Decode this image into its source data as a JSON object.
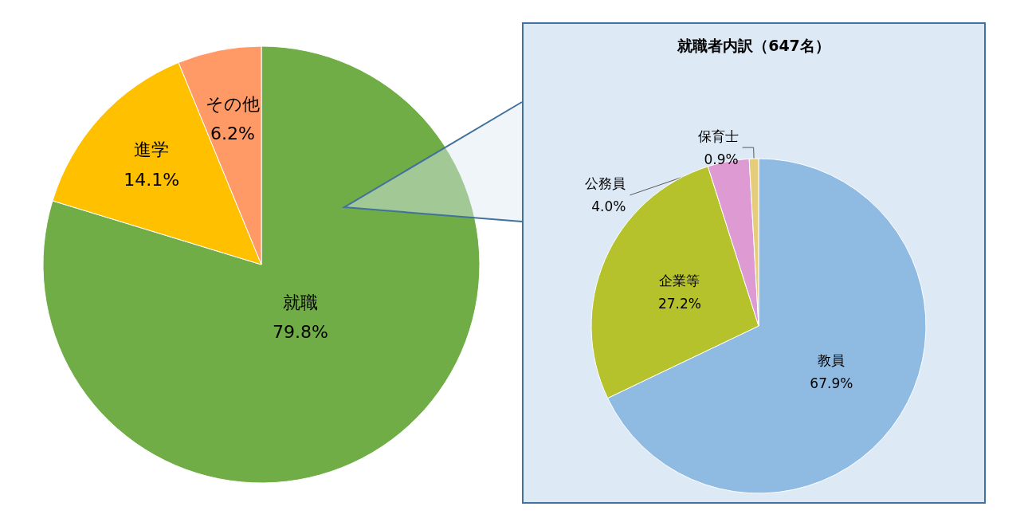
{
  "chart_data": [
    {
      "type": "pie",
      "categories": [
        "就職",
        "進学",
        "その他"
      ],
      "values": [
        79.8,
        14.1,
        6.2
      ],
      "colors": [
        "#70ad47",
        "#ffc000",
        "#ff9966"
      ],
      "value_labels": [
        "79.8%",
        "14.1%",
        "6.2%"
      ]
    },
    {
      "type": "pie",
      "title": "就職者内訳（647名）",
      "categories": [
        "教員",
        "企業等",
        "公務員",
        "保育士"
      ],
      "values": [
        67.9,
        27.2,
        4.0,
        0.9
      ],
      "colors": [
        "#8fbbe3",
        "#b5c22c",
        "#dd9ad3",
        "#e6cd7c"
      ],
      "value_labels": [
        "67.9%",
        "27.2%",
        "4.0%",
        "0.9%"
      ]
    }
  ]
}
